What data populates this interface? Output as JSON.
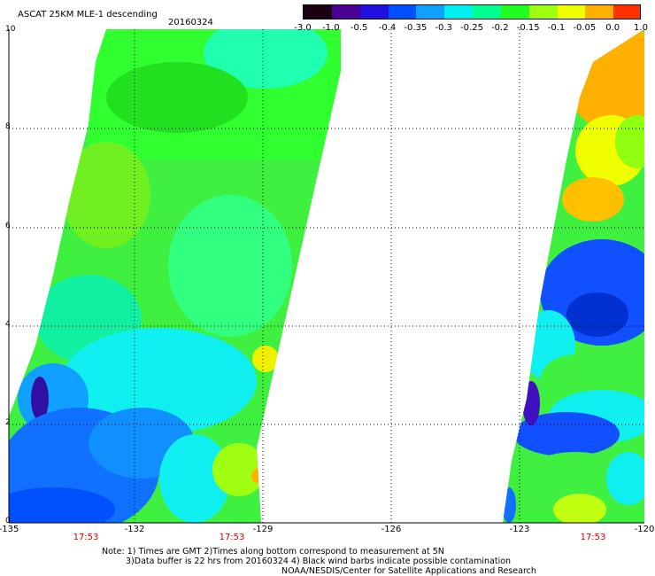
{
  "header": {
    "title": "ASCAT 25KM MLE-1 descending",
    "date": "20160324"
  },
  "colorbar": {
    "labels": [
      "-3.0",
      "-1.0",
      "-0.5",
      "-0.4",
      "-0.35",
      "-0.3",
      "-0.25",
      "-0.2",
      "-0.15",
      "-0.1",
      "-0.05",
      "0.0",
      "1.0"
    ],
    "colors": [
      "#1a0010",
      "#4a0090",
      "#2010e0",
      "#0050ff",
      "#10a0ff",
      "#00f0f0",
      "#00ff90",
      "#20ff20",
      "#a0ff10",
      "#f0ff00",
      "#ffb000",
      "#ff3000"
    ]
  },
  "axes": {
    "y_ticks": [
      "0",
      "2",
      "4",
      "6",
      "8",
      "10"
    ],
    "x_ticks": [
      "-135",
      "-132",
      "-129",
      "-126",
      "-123",
      "-120"
    ],
    "time_labels": [
      "17:53",
      "17:53",
      "17:53"
    ]
  },
  "notes": {
    "line1": "Note: 1) Times are GMT 2)Times along bottom correspond to measurement at 5N",
    "line2": "3)Data buffer is 22 hrs from 20160324 4) Black wind barbs indicate possible contamination",
    "line3": "NOAA/NESDIS/Center for Satellite Applications and Research"
  },
  "colors": {
    "grid": "#000000",
    "deep_blue": "#0030ff",
    "blue": "#1070ff",
    "cyan": "#10f0f0",
    "aqua_green": "#00ffa0",
    "green": "#20f020",
    "lime": "#90ff10",
    "yellow": "#f0ff00",
    "orange": "#ffb000",
    "purple": "#4010c0"
  }
}
